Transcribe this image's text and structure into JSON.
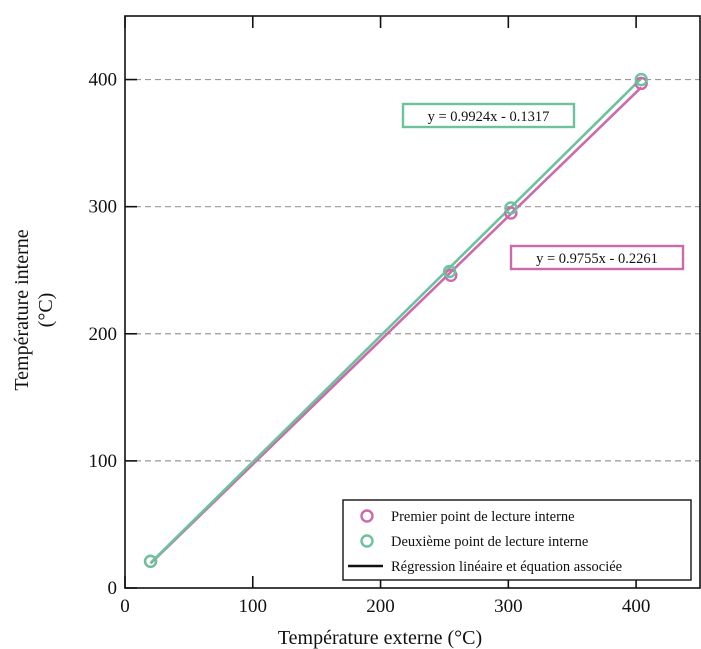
{
  "chart_data": {
    "type": "scatter",
    "xlabel": "Température externe (°C)",
    "ylabel_lines": [
      "Température interne",
      "(°C)"
    ],
    "xlim": [
      0,
      450
    ],
    "ylim": [
      0,
      450
    ],
    "x_ticks": [
      0,
      100,
      200,
      300,
      400
    ],
    "y_ticks": [
      0,
      100,
      200,
      300,
      400
    ],
    "y_grid": "dashed",
    "legend_position": "bottom-right",
    "series": [
      {
        "name": "Premier point de lecture interne",
        "color": "#cc6aab",
        "marker": "open-circle",
        "points": [
          {
            "x": 20,
            "y": 21
          },
          {
            "x": 255,
            "y": 246
          },
          {
            "x": 302,
            "y": 295
          },
          {
            "x": 404,
            "y": 397
          }
        ],
        "fit": {
          "slope": 0.9755,
          "intercept": -0.2261
        },
        "equation": "y = 0.9755x - 0.2261"
      },
      {
        "name": "Deuxième point de lecture interne",
        "color": "#6cc29c",
        "marker": "open-circle",
        "points": [
          {
            "x": 20,
            "y": 21
          },
          {
            "x": 254,
            "y": 249
          },
          {
            "x": 302,
            "y": 299
          },
          {
            "x": 404,
            "y": 400
          }
        ],
        "fit": {
          "slope": 0.9924,
          "intercept": -0.1317
        },
        "equation": "y = 0.9924x - 0.1317"
      }
    ],
    "legend": [
      {
        "label": "Premier point de lecture interne",
        "kind": "marker",
        "color": "#cc6aab"
      },
      {
        "label": "Deuxième point de lecture interne",
        "kind": "marker",
        "color": "#6cc29c"
      },
      {
        "label": "Régression linéaire et équation associée",
        "kind": "line",
        "color": "#111111"
      }
    ]
  }
}
